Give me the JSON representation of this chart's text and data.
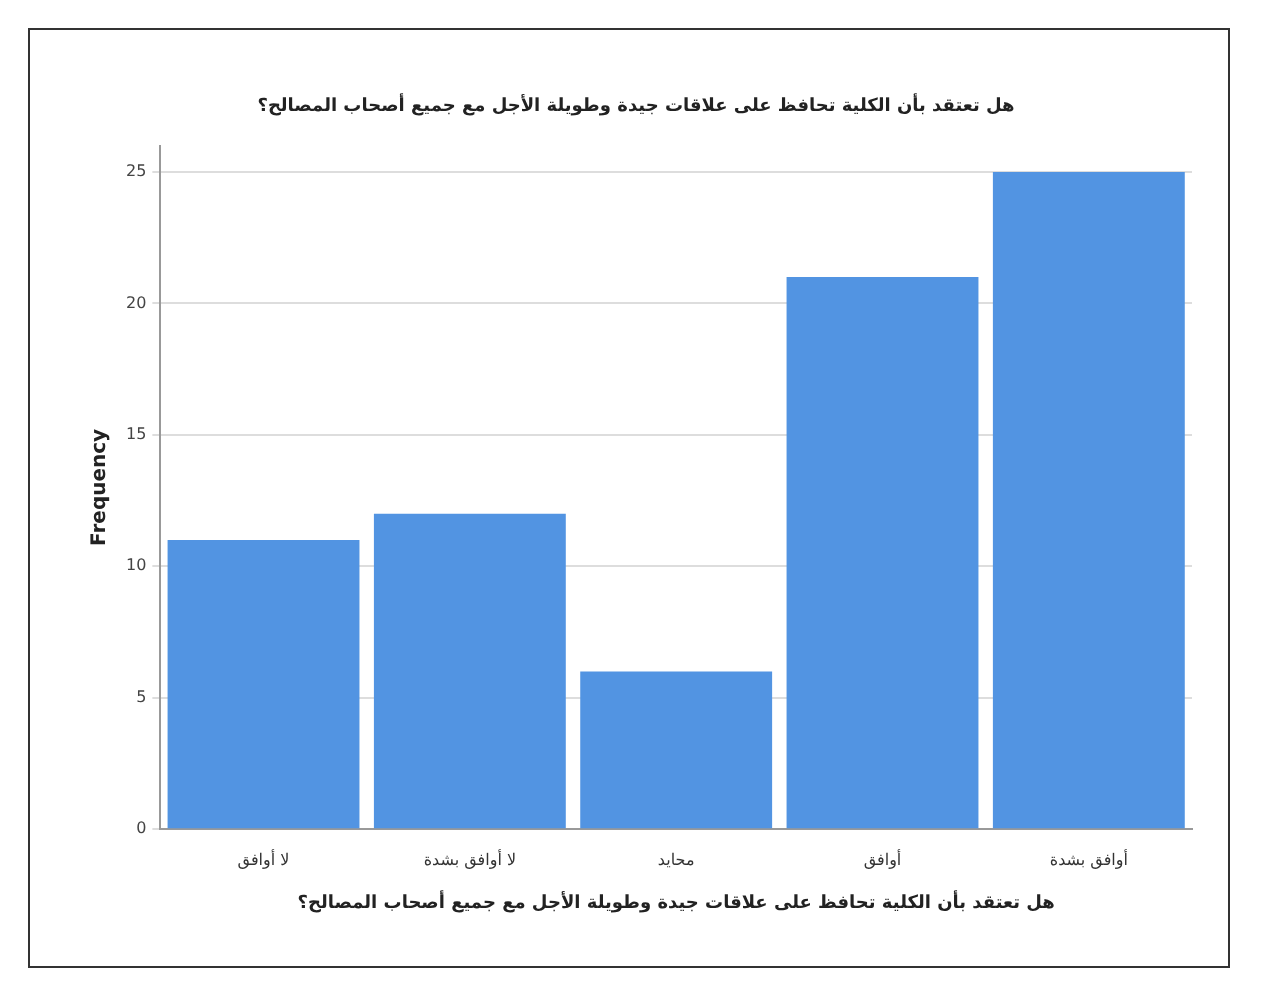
{
  "chart_data": {
    "type": "bar",
    "title": "هل تعتقد بأن الكلية تحافظ على علاقات جيدة وطويلة الأجل مع جميع أصحاب المصالح؟",
    "xlabel": "هل تعتقد بأن الكلية تحافظ على علاقات جيدة وطويلة الأجل مع جميع أصحاب المصالح؟",
    "ylabel": "Frequency",
    "categories": [
      "لا أوافق",
      "لا أوافق بشدة",
      "محايد",
      "أوافق",
      "أوافق بشدة"
    ],
    "values": [
      11,
      12,
      6,
      21,
      25
    ],
    "color": "#5294e2",
    "ylim": [
      0,
      26
    ],
    "yticks": [
      0,
      5,
      10,
      15,
      20,
      25
    ],
    "grid": "y",
    "legend": false
  }
}
